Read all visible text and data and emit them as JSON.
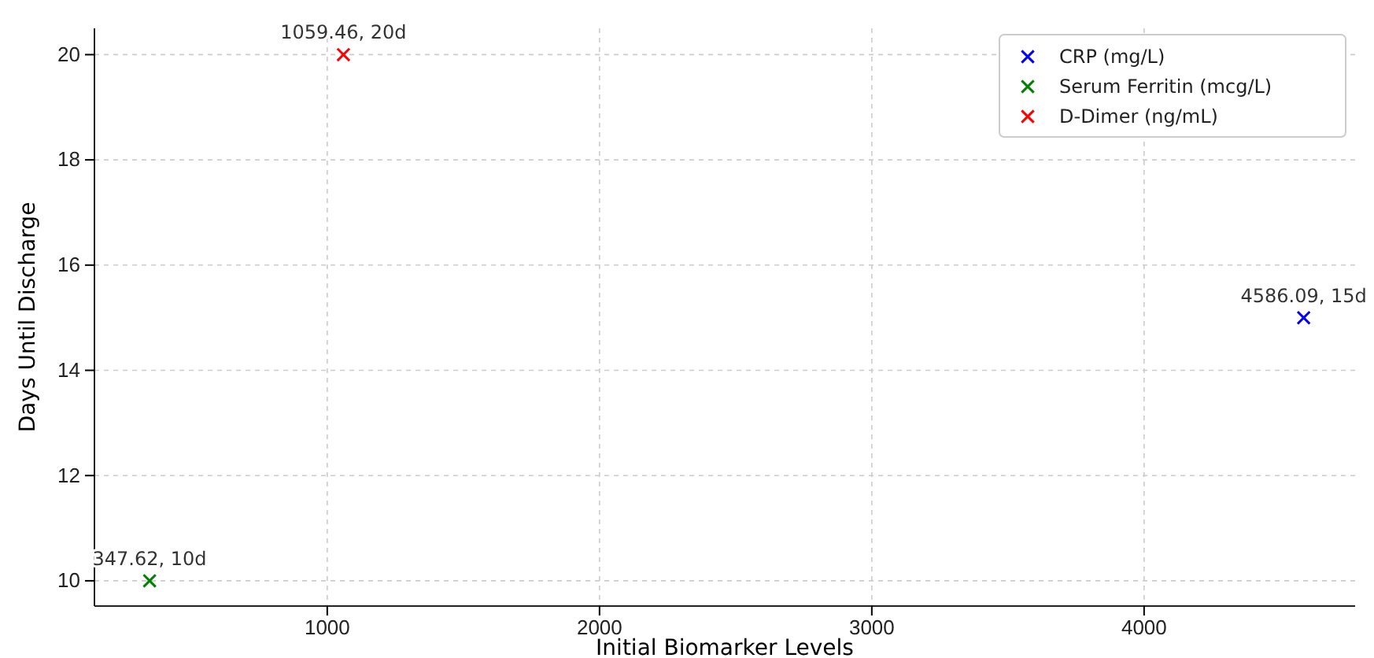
{
  "chart_data": {
    "type": "scatter",
    "xlabel": "Initial Biomarker Levels",
    "ylabel": "Days Until Discharge",
    "xlim": [
      145,
      4775
    ],
    "xticks": [
      1000,
      2000,
      3000,
      4000
    ],
    "ylim": [
      9.52,
      20.5
    ],
    "yticks": [
      10,
      12,
      14,
      16,
      18,
      20
    ],
    "grid": true,
    "legend": "top right",
    "marker": "cross",
    "series": [
      {
        "name": "CRP (mg/L)",
        "color": "#0000ff",
        "x": [
          4586.09
        ],
        "values": [
          15
        ]
      },
      {
        "name": "Serum Ferritin (mcg/L)",
        "color": "#008000",
        "x": [
          347.62
        ],
        "values": [
          10
        ]
      },
      {
        "name": "D-Dimer (ng/mL)",
        "color": "#ff0000",
        "x": [
          1059.46
        ],
        "values": [
          20
        ]
      }
    ],
    "annotations": [
      {
        "text": "4586.09, 15d",
        "x": 4586.09,
        "y": 15
      },
      {
        "text": "347.62, 10d",
        "x": 347.62,
        "y": 10
      },
      {
        "text": "1059.46, 20d",
        "x": 1059.46,
        "y": 20
      }
    ]
  }
}
